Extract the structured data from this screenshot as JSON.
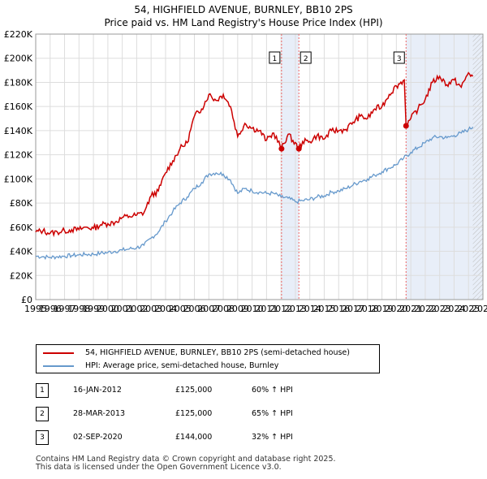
{
  "title": "54, HIGHFIELD AVENUE, BURNLEY, BB10 2PS",
  "subtitle": "Price paid vs. HM Land Registry's House Price Index (HPI)",
  "colors": {
    "property": "#cc0000",
    "hpi": "#6699cc",
    "shade": "#e8eef8",
    "grid": "#dddddd",
    "marker_line": "#ee6666"
  },
  "chart_data": {
    "type": "line",
    "x_range": [
      1995,
      2026
    ],
    "ylim": [
      0,
      220000
    ],
    "y_ticks": [
      {
        "v": 0,
        "label": "£0"
      },
      {
        "v": 20000,
        "label": "£20K"
      },
      {
        "v": 40000,
        "label": "£40K"
      },
      {
        "v": 60000,
        "label": "£60K"
      },
      {
        "v": 80000,
        "label": "£80K"
      },
      {
        "v": 100000,
        "label": "£100K"
      },
      {
        "v": 120000,
        "label": "£120K"
      },
      {
        "v": 140000,
        "label": "£140K"
      },
      {
        "v": 160000,
        "label": "£160K"
      },
      {
        "v": 180000,
        "label": "£180K"
      },
      {
        "v": 200000,
        "label": "£200K"
      },
      {
        "v": 220000,
        "label": "£220K"
      }
    ],
    "x_ticks": [
      "1995",
      "1996",
      "1997",
      "1998",
      "1999",
      "2000",
      "2001",
      "2002",
      "2003",
      "2004",
      "2005",
      "2006",
      "2007",
      "2008",
      "2009",
      "2010",
      "2011",
      "2012",
      "2013",
      "2014",
      "2015",
      "2016",
      "2017",
      "2018",
      "2019",
      "2020",
      "2021",
      "2022",
      "2023",
      "2024",
      "2025",
      "2026"
    ],
    "grid": true,
    "shaded_spans": [
      [
        2012.04,
        2013.24
      ],
      [
        2020.67,
        2026
      ]
    ],
    "hatched_after": 2025.3,
    "series": [
      {
        "name": "54, HIGHFIELD AVENUE, BURNLEY, BB10 2PS (semi-detached house)",
        "color": "#cc0000",
        "x": [
          1995,
          1995.5,
          1996,
          1996.5,
          1997,
          1997.5,
          1998,
          1998.5,
          1999,
          1999.5,
          2000,
          2000.5,
          2001,
          2001.5,
          2002,
          2002.5,
          2003,
          2003.5,
          2004,
          2004.5,
          2005,
          2005.5,
          2006,
          2006.5,
          2007,
          2007.5,
          2008,
          2008.5,
          2009,
          2009.5,
          2010,
          2010.5,
          2011,
          2011.5,
          2012.04,
          2012.5,
          2013.24,
          2013.5,
          2014,
          2014.5,
          2015,
          2015.5,
          2016,
          2016.5,
          2017,
          2017.5,
          2018,
          2018.5,
          2019,
          2019.5,
          2020,
          2020.55,
          2020.67,
          2021,
          2021.5,
          2022,
          2022.5,
          2023,
          2023.5,
          2024,
          2024.5,
          2025,
          2025.3
        ],
        "values": [
          56000,
          57000,
          55000,
          56000,
          57000,
          58000,
          58000,
          60000,
          59000,
          62000,
          63000,
          64000,
          68000,
          69000,
          70000,
          72000,
          86000,
          90000,
          105000,
          115000,
          125000,
          130000,
          152000,
          158000,
          170000,
          165000,
          170000,
          160000,
          135000,
          146000,
          142000,
          140000,
          132000,
          138000,
          125000,
          137000,
          125000,
          131000,
          131000,
          136000,
          133000,
          140000,
          140000,
          141000,
          147000,
          152000,
          150000,
          158000,
          160000,
          170000,
          177000,
          182000,
          144000,
          150000,
          158000,
          166000,
          180000,
          185000,
          178000,
          182000,
          176000,
          188000,
          185000
        ]
      },
      {
        "name": "HPI: Average price, semi-detached house, Burnley",
        "color": "#6699cc",
        "x": [
          1995,
          1995.5,
          1996,
          1996.5,
          1997,
          1997.5,
          1998,
          1998.5,
          1999,
          1999.5,
          2000,
          2000.5,
          2001,
          2001.5,
          2002,
          2002.5,
          2003,
          2003.5,
          2004,
          2004.5,
          2005,
          2005.5,
          2006,
          2006.5,
          2007,
          2007.5,
          2008,
          2008.5,
          2009,
          2009.5,
          2010,
          2010.5,
          2011,
          2011.5,
          2012,
          2012.5,
          2013,
          2013.5,
          2014,
          2014.5,
          2015,
          2015.5,
          2016,
          2016.5,
          2017,
          2017.5,
          2018,
          2018.5,
          2019,
          2019.5,
          2020,
          2020.5,
          2021,
          2021.5,
          2022,
          2022.5,
          2023,
          2023.5,
          2024,
          2024.5,
          2025,
          2025.3
        ],
        "values": [
          36000,
          35500,
          35000,
          35500,
          36000,
          36500,
          37000,
          37500,
          37500,
          38500,
          39000,
          40000,
          41000,
          42000,
          43000,
          45000,
          51000,
          56000,
          65000,
          73000,
          80000,
          85000,
          92000,
          97000,
          104000,
          105000,
          104000,
          99000,
          88000,
          92000,
          90000,
          89000,
          88000,
          88000,
          85000,
          84000,
          81000,
          82000,
          83000,
          85000,
          86000,
          89000,
          90000,
          92000,
          95000,
          98000,
          100000,
          103000,
          106000,
          109000,
          112000,
          117000,
          122000,
          126000,
          130000,
          134000,
          135000,
          134000,
          136000,
          138000,
          141000,
          143000
        ]
      }
    ],
    "sale_markers": [
      {
        "label": "1",
        "x": 2012.04,
        "value": 125000
      },
      {
        "label": "2",
        "x": 2013.24,
        "value": 125000
      },
      {
        "label": "3",
        "x": 2020.67,
        "value": 144000
      }
    ]
  },
  "legend": {
    "property_label": "54, HIGHFIELD AVENUE, BURNLEY, BB10 2PS (semi-detached house)",
    "hpi_label": "HPI: Average price, semi-detached house, Burnley"
  },
  "sales": [
    {
      "num": "1",
      "date": "16-JAN-2012",
      "price": "£125,000",
      "hpi": "60% ↑ HPI"
    },
    {
      "num": "2",
      "date": "28-MAR-2013",
      "price": "£125,000",
      "hpi": "65% ↑ HPI"
    },
    {
      "num": "3",
      "date": "02-SEP-2020",
      "price": "£144,000",
      "hpi": "32% ↑ HPI"
    }
  ],
  "footer": {
    "line1": "Contains HM Land Registry data © Crown copyright and database right 2025.",
    "line2": "This data is licensed under the Open Government Licence v3.0."
  }
}
